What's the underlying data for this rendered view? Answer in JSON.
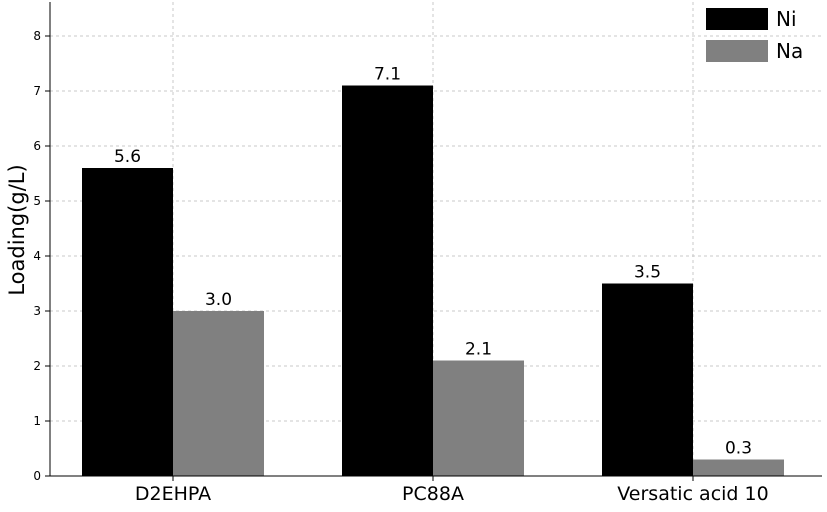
{
  "chart_data": {
    "type": "bar",
    "categories": [
      "D2EHPA",
      "PC88A",
      "Versatic acid 10"
    ],
    "series": [
      {
        "name": "Ni",
        "values": [
          5.6,
          7.1,
          3.5
        ],
        "labels": [
          "5.6",
          "7.1",
          "3.5"
        ],
        "color": "#000000"
      },
      {
        "name": "Na",
        "values": [
          3.0,
          2.1,
          0.3
        ],
        "labels": [
          "3.0",
          "2.1",
          "0.3"
        ],
        "color": "#808080"
      }
    ],
    "title": "",
    "xlabel": "",
    "ylabel": "Loading(g/L)",
    "ylim": [
      0,
      8.6
    ],
    "yticks": [
      "0",
      "1",
      "2",
      "3",
      "4",
      "5",
      "6",
      "7",
      "8"
    ],
    "grid": true,
    "legend_position": "top-right"
  }
}
